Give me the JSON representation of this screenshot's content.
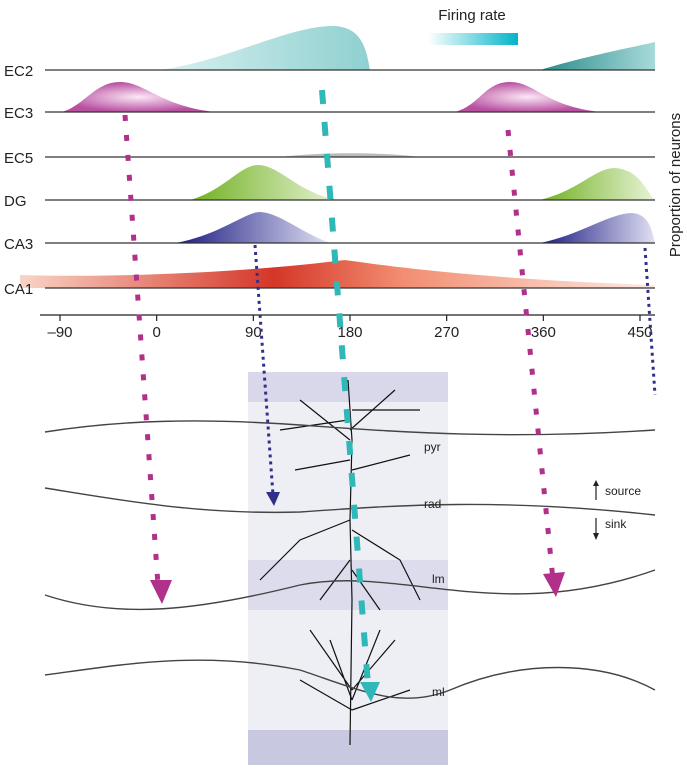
{
  "legend": {
    "title": "Firing rate"
  },
  "y_axis_label": "Proportion of neurons",
  "rows": [
    "EC2",
    "EC3",
    "EC5",
    "DG",
    "CA3",
    "CA1"
  ],
  "x_axis": {
    "ticks": [
      {
        "value": -90,
        "label": "–90"
      },
      0,
      90,
      180,
      270,
      360,
      450
    ]
  },
  "layers": [
    "pyr",
    "rad",
    "lm",
    "ml"
  ],
  "current_labels": [
    "source",
    "sink"
  ]
}
